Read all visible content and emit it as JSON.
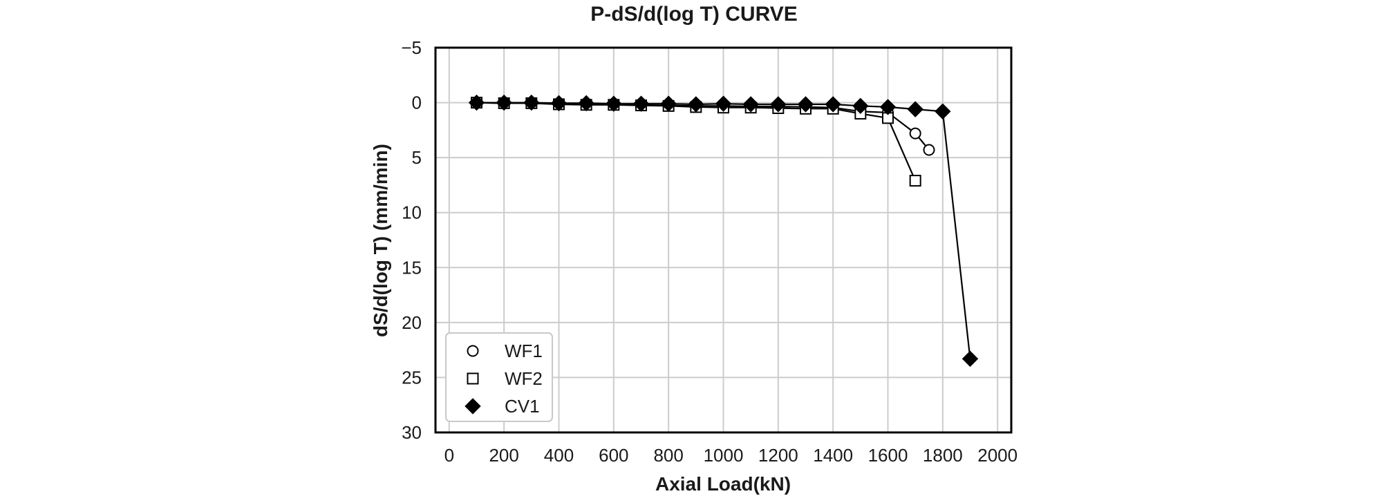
{
  "chart_data": {
    "type": "line",
    "title": "P-dS/d(log T) CURVE",
    "xlabel": "Axial Load(kN)",
    "ylabel": "dS/d(log T) (mm/min)",
    "xlim": [
      -50,
      2050
    ],
    "ylim": [
      30,
      -5
    ],
    "y_inverted": true,
    "xticks": [
      0,
      200,
      400,
      600,
      800,
      1000,
      1200,
      1400,
      1600,
      1800,
      2000
    ],
    "yticks": [
      -5,
      0,
      5,
      10,
      15,
      20,
      25,
      30
    ],
    "ytick_labels": [
      "−5",
      "0",
      "5",
      "10",
      "15",
      "20",
      "25",
      "30"
    ],
    "grid": true,
    "legend_position": "lower-left",
    "series": [
      {
        "name": "WF1",
        "marker": "circle-open",
        "x": [
          100,
          200,
          300,
          400,
          500,
          600,
          700,
          800,
          900,
          1000,
          1100,
          1200,
          1300,
          1400,
          1500,
          1600,
          1700,
          1750
        ],
        "y": [
          0,
          0.05,
          0.05,
          0.1,
          0.15,
          0.15,
          0.2,
          0.25,
          0.3,
          0.3,
          0.35,
          0.35,
          0.4,
          0.45,
          0.8,
          0.9,
          2.8,
          4.3
        ]
      },
      {
        "name": "WF2",
        "marker": "square-open",
        "x": [
          100,
          200,
          300,
          400,
          500,
          600,
          700,
          800,
          900,
          1000,
          1100,
          1200,
          1300,
          1400,
          1500,
          1600,
          1700
        ],
        "y": [
          0,
          0.05,
          0.05,
          0.15,
          0.2,
          0.2,
          0.25,
          0.3,
          0.4,
          0.45,
          0.45,
          0.5,
          0.55,
          0.55,
          1.0,
          1.4,
          7.1
        ]
      },
      {
        "name": "CV1",
        "marker": "diamond-filled",
        "x": [
          100,
          200,
          300,
          400,
          500,
          600,
          700,
          800,
          900,
          1000,
          1100,
          1200,
          1300,
          1400,
          1500,
          1600,
          1700,
          1800,
          1900
        ],
        "y": [
          0,
          0,
          0,
          0.05,
          0.05,
          0.1,
          0.1,
          0.1,
          0.15,
          0.1,
          0.15,
          0.15,
          0.15,
          0.15,
          0.3,
          0.4,
          0.6,
          0.8,
          23.3
        ]
      }
    ]
  }
}
